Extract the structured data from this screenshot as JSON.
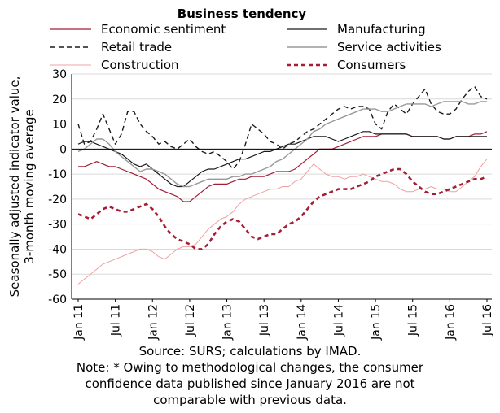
{
  "chart_data": {
    "type": "line",
    "title": "Business tendency",
    "ylabel": [
      "Seasonally adjusted indicator value,",
      "3-month moving average"
    ],
    "ylim": [
      -60,
      30
    ],
    "yticks": [
      -60,
      -50,
      -40,
      -30,
      -20,
      -10,
      0,
      10,
      20,
      30
    ],
    "ytick_labels": [
      "-60",
      "-50",
      "-40",
      "-30",
      "-20",
      "-10",
      "0",
      "10",
      "20",
      "30"
    ],
    "x_range": [
      "2011-01",
      "2016-09"
    ],
    "xtick_labels": [
      "Jan 11",
      "Jul 11",
      "Jan 12",
      "Jul 12",
      "Jan 13",
      "Jul 13",
      "Jan 14",
      "Jul 14",
      "Jan 15",
      "Jul 15",
      "Jan 16",
      "Jul 16"
    ],
    "xtick_months": [
      "2011-01",
      "2011-07",
      "2012-01",
      "2012-07",
      "2013-01",
      "2013-07",
      "2014-01",
      "2014-07",
      "2015-01",
      "2015-07",
      "2016-01",
      "2016-07"
    ],
    "grid": true,
    "legend_position": "top",
    "series": [
      {
        "name": "Economic sentiment",
        "color": "#a41e34",
        "dash": "solid",
        "width": 1.2,
        "values": [
          -7,
          -7,
          -6,
          -5,
          -6,
          -7,
          -7,
          -8,
          -9,
          -10,
          -11,
          -12,
          -14,
          -16,
          -17,
          -18,
          -19,
          -21,
          -21,
          -19,
          -17,
          -15,
          -14,
          -14,
          -14,
          -13,
          -12,
          -12,
          -11,
          -11,
          -11,
          -10,
          -9,
          -9,
          -9,
          -8,
          -6,
          -4,
          -2,
          0,
          0,
          0,
          1,
          2,
          3,
          4,
          5,
          5,
          5,
          6,
          6,
          6,
          6,
          6,
          5,
          5,
          5,
          5,
          5,
          4,
          4,
          5,
          5,
          5,
          6,
          6,
          7
        ]
      },
      {
        "name": "Manufacturing",
        "color": "#1a1a1a",
        "dash": "solid",
        "width": 1.2,
        "values": [
          2,
          3,
          3,
          2,
          1,
          0,
          -1,
          -2,
          -4,
          -6,
          -7,
          -6,
          -8,
          -10,
          -12,
          -14,
          -15,
          -15,
          -13,
          -11,
          -9,
          -8,
          -8,
          -7,
          -6,
          -5,
          -4,
          -4,
          -3,
          -2,
          -1,
          -1,
          0,
          1,
          2,
          2,
          3,
          4,
          5,
          5,
          5,
          4,
          3,
          4,
          5,
          6,
          7,
          7,
          6,
          6,
          6,
          6,
          6,
          6,
          5,
          5,
          5,
          5,
          5,
          4,
          4,
          5,
          5,
          5,
          5,
          5,
          5
        ]
      },
      {
        "name": "Retail trade",
        "color": "#1a1a1a",
        "dash": "6,4",
        "width": 1.4,
        "values": [
          10,
          2,
          3,
          8,
          14,
          8,
          2,
          6,
          15,
          15,
          10,
          7,
          5,
          2,
          3,
          1,
          0,
          2,
          4,
          1,
          -1,
          -2,
          -1,
          -3,
          -5,
          -8,
          -5,
          2,
          10,
          8,
          6,
          3,
          2,
          0,
          2,
          3,
          5,
          7,
          8,
          10,
          12,
          14,
          16,
          17,
          16,
          17,
          17,
          16,
          10,
          8,
          15,
          18,
          16,
          14,
          18,
          21,
          24,
          18,
          15,
          14,
          14,
          16,
          20,
          23,
          25,
          21,
          20
        ]
      },
      {
        "name": "Service activities",
        "color": "#999999",
        "dash": "solid",
        "width": 1.4,
        "values": [
          -1,
          0,
          2,
          4,
          4,
          2,
          -1,
          -3,
          -5,
          -7,
          -9,
          -8,
          -8,
          -9,
          -10,
          -12,
          -14,
          -15,
          -15,
          -14,
          -13,
          -12,
          -12,
          -12,
          -12,
          -11,
          -11,
          -10,
          -10,
          -9,
          -8,
          -7,
          -5,
          -4,
          -2,
          0,
          2,
          4,
          7,
          8,
          10,
          11,
          12,
          13,
          14,
          15,
          16,
          16,
          16,
          15,
          15,
          16,
          17,
          18,
          18,
          18,
          18,
          17,
          18,
          19,
          19,
          19,
          19,
          18,
          18,
          19,
          19
        ]
      },
      {
        "name": "Construction",
        "color": "#f0a0a0",
        "dash": "solid",
        "width": 1.0,
        "values": [
          -54,
          -52,
          -50,
          -48,
          -46,
          -45,
          -44,
          -43,
          -42,
          -41,
          -40,
          -40,
          -41,
          -43,
          -44,
          -42,
          -40,
          -39,
          -39,
          -38,
          -35,
          -32,
          -30,
          -28,
          -27,
          -25,
          -22,
          -20,
          -19,
          -18,
          -17,
          -16,
          -16,
          -15,
          -15,
          -13,
          -12,
          -9,
          -6,
          -8,
          -10,
          -11,
          -11,
          -12,
          -11,
          -11,
          -10,
          -11,
          -12,
          -13,
          -13,
          -14,
          -16,
          -17,
          -17,
          -16,
          -16,
          -15,
          -16,
          -16,
          -17,
          -17,
          -15,
          -13,
          -11,
          -7,
          -4
        ]
      },
      {
        "name": "Consumers",
        "color": "#a41e34",
        "dash": "5,4",
        "width": 2.6,
        "values": [
          -26,
          -27,
          -28,
          -26,
          -24,
          -23,
          -24,
          -25,
          -25,
          -24,
          -23,
          -22,
          -24,
          -27,
          -31,
          -34,
          -36,
          -37,
          -38,
          -40,
          -40,
          -38,
          -34,
          -31,
          -29,
          -28,
          -29,
          -32,
          -35,
          -36,
          -35,
          -34,
          -34,
          -32,
          -30,
          -29,
          -27,
          -24,
          -21,
          -19,
          -18,
          -17,
          -16,
          -16,
          -16,
          -15,
          -14,
          -13,
          -11,
          -10,
          -9,
          -8,
          -8,
          -10,
          -13,
          -15,
          -17,
          -18,
          -18,
          -17,
          -16,
          -15,
          -14,
          -13,
          -12,
          -12,
          -11
        ]
      }
    ]
  },
  "source": {
    "line1": "Source: SURS; calculations by IMAD.",
    "line2": "Note: * Owing to methodological changes, the consumer",
    "line3": "confidence data published since January 2016 are not",
    "line4": "comparable with previous data."
  }
}
